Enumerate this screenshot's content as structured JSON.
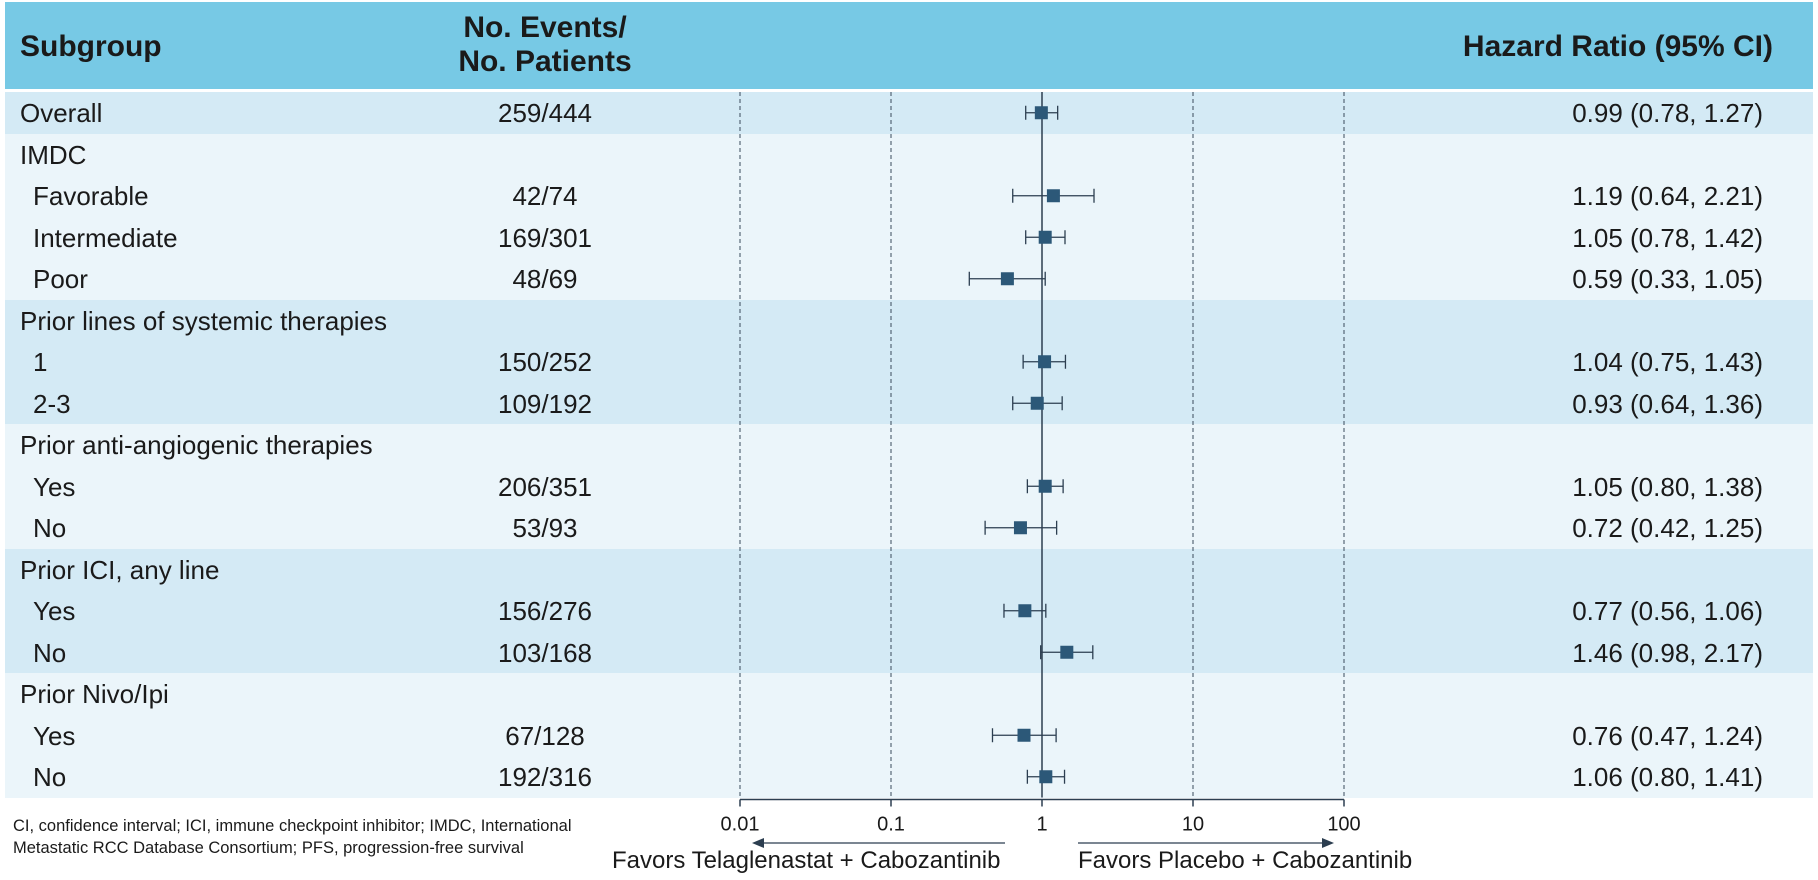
{
  "header": {
    "subgroup": "Subgroup",
    "events_line1": "No. Events/",
    "events_line2": "No. Patients",
    "hr": "Hazard Ratio (95% CI)"
  },
  "colors": {
    "header_bg": "#77c9e5",
    "band_dark": "#d4eaf5",
    "band_light": "#ebf5fa",
    "marker": "#2c5878",
    "line": "#2c3e50"
  },
  "chart_data": {
    "type": "forest",
    "x_scale": "log",
    "xlim": [
      0.01,
      100
    ],
    "reference_line": 1,
    "x_ticks": [
      0.01,
      0.1,
      1,
      10,
      100
    ],
    "x_tick_labels": [
      "0.01",
      "0.1",
      "1",
      "10",
      "100"
    ],
    "favors_left": "Favors Telaglenastat + Cabozantinib",
    "favors_right": "Favors Placebo + Cabozantinib",
    "groups": [
      {
        "rows": [
          {
            "label": "Overall",
            "events": "259/444",
            "hr": 0.99,
            "lo": 0.78,
            "hi": 1.27,
            "hr_text": "0.99 (0.78, 1.27)"
          }
        ]
      },
      {
        "header": "IMDC",
        "rows": [
          {
            "label": "Favorable",
            "events": "42/74",
            "hr": 1.19,
            "lo": 0.64,
            "hi": 2.21,
            "hr_text": "1.19 (0.64, 2.21)"
          },
          {
            "label": "Intermediate",
            "events": "169/301",
            "hr": 1.05,
            "lo": 0.78,
            "hi": 1.42,
            "hr_text": "1.05 (0.78, 1.42)"
          },
          {
            "label": "Poor",
            "events": "48/69",
            "hr": 0.59,
            "lo": 0.33,
            "hi": 1.05,
            "hr_text": "0.59 (0.33, 1.05)"
          }
        ]
      },
      {
        "header": "Prior lines of systemic therapies",
        "rows": [
          {
            "label": "1",
            "events": "150/252",
            "hr": 1.04,
            "lo": 0.75,
            "hi": 1.43,
            "hr_text": "1.04 (0.75, 1.43)"
          },
          {
            "label": "2-3",
            "events": "109/192",
            "hr": 0.93,
            "lo": 0.64,
            "hi": 1.36,
            "hr_text": "0.93 (0.64, 1.36)"
          }
        ]
      },
      {
        "header": "Prior anti-angiogenic therapies",
        "rows": [
          {
            "label": "Yes",
            "events": "206/351",
            "hr": 1.05,
            "lo": 0.8,
            "hi": 1.38,
            "hr_text": "1.05 (0.80, 1.38)"
          },
          {
            "label": "No",
            "events": "53/93",
            "hr": 0.72,
            "lo": 0.42,
            "hi": 1.25,
            "hr_text": "0.72 (0.42, 1.25)"
          }
        ]
      },
      {
        "header": "Prior ICI, any line",
        "rows": [
          {
            "label": "Yes",
            "events": "156/276",
            "hr": 0.77,
            "lo": 0.56,
            "hi": 1.06,
            "hr_text": "0.77 (0.56, 1.06)"
          },
          {
            "label": "No",
            "events": "103/168",
            "hr": 1.46,
            "lo": 0.98,
            "hi": 2.17,
            "hr_text": "1.46 (0.98, 2.17)"
          }
        ]
      },
      {
        "header": "Prior Nivo/Ipi",
        "rows": [
          {
            "label": "Yes",
            "events": "67/128",
            "hr": 0.76,
            "lo": 0.47,
            "hi": 1.24,
            "hr_text": "0.76 (0.47, 1.24)"
          },
          {
            "label": "No",
            "events": "192/316",
            "hr": 1.06,
            "lo": 0.8,
            "hi": 1.41,
            "hr_text": "1.06 (0.80, 1.41)"
          }
        ]
      }
    ]
  },
  "footnote": "CI, confidence interval; ICI, immune checkpoint inhibitor; IMDC, International Metastatic RCC Database Consortium; PFS, progression-free survival"
}
